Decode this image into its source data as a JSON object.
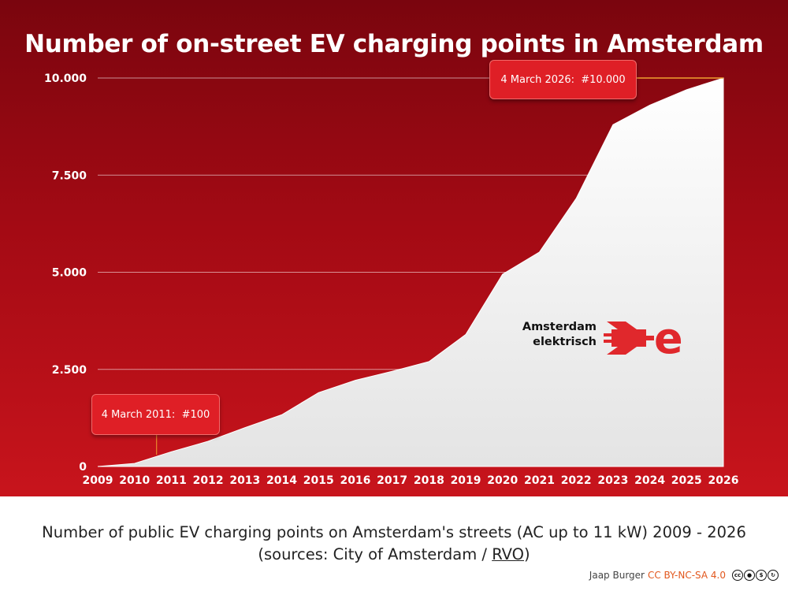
{
  "chart_data": {
    "type": "area",
    "title": "Number of on-street EV charging points in Amsterdam",
    "x_ticks": [
      "2009",
      "2010",
      "2011",
      "2012",
      "2013",
      "2014",
      "2015",
      "2016",
      "2017",
      "2018",
      "2019",
      "2020",
      "2021",
      "2022",
      "2023",
      "2024",
      "2025",
      "2026"
    ],
    "y_ticks": [
      "0",
      "2.500",
      "5.000",
      "7.500",
      "10.000"
    ],
    "y_tick_values": [
      0,
      2500,
      5000,
      7500,
      10000
    ],
    "ylim": [
      0,
      10000
    ],
    "xlim": [
      2009,
      2026
    ],
    "grid": "horizontal",
    "series": [
      {
        "x": [
          2009,
          2010,
          2011,
          2012,
          2013,
          2014,
          2015,
          2016,
          2017,
          2018,
          2019,
          2020,
          2021,
          2022,
          2023,
          2024,
          2025,
          2026
        ],
        "values": [
          0,
          80,
          380,
          650,
          1000,
          1330,
          1900,
          2220,
          2450,
          2700,
          3400,
          4950,
          5520,
          6900,
          8800,
          9300,
          9700,
          10000
        ]
      }
    ],
    "annotations": [
      {
        "label": "4 March 2011:  #100",
        "x": 2010.6,
        "y": 100
      },
      {
        "label": "4 March 2026:  #10.000",
        "x": 2026,
        "y": 10000
      }
    ]
  },
  "logo": {
    "line1": "Amsterdam",
    "line2": "elektrisch"
  },
  "caption": {
    "line1": "Number of public EV charging points on Amsterdam's streets (AC up to 11 kW) 2009 - 2026",
    "line2_prefix": "(sources: City of Amsterdam / ",
    "line2_link": "RVO",
    "line2_suffix": ")"
  },
  "credit": {
    "author": "Jaap Burger",
    "license": "CC BY-NC-SA 4.0"
  },
  "colors": {
    "panel_top": "#7a050e",
    "panel_bottom": "#c8141c",
    "area": "#f2f2f2",
    "callout": "#df1f26",
    "callout_line": "#f0a030",
    "logo_red": "#e0282c",
    "license": "#e2571d"
  }
}
